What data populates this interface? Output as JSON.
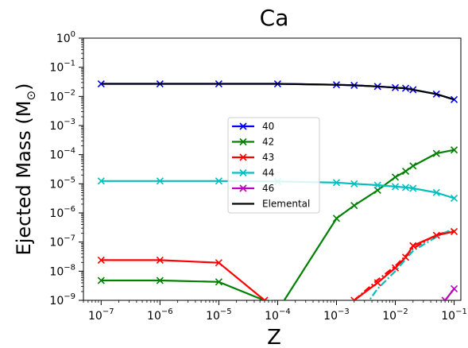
{
  "chart_data": {
    "type": "line",
    "title": "Ca",
    "xlabel": "Z",
    "ylabel": "Ejected Mass (M",
    "ylabel_symbol": "⊙",
    "ylabel_close": ")",
    "xscale": "log",
    "yscale": "log",
    "xlim": [
      5e-08,
      0.13
    ],
    "ylim": [
      1e-09,
      1
    ],
    "x_ticks": [
      {
        "value": 1e-07,
        "base": "10",
        "exp": "−7"
      },
      {
        "value": 1e-06,
        "base": "10",
        "exp": "−6"
      },
      {
        "value": 1e-05,
        "base": "10",
        "exp": "−5"
      },
      {
        "value": 0.0001,
        "base": "10",
        "exp": "−4"
      },
      {
        "value": 0.001,
        "base": "10",
        "exp": "−3"
      },
      {
        "value": 0.01,
        "base": "10",
        "exp": "−2"
      },
      {
        "value": 0.1,
        "base": "10",
        "exp": "−1"
      }
    ],
    "y_ticks": [
      {
        "value": 1.0,
        "base": "10",
        "exp": "0"
      },
      {
        "value": 0.1,
        "base": "10",
        "exp": "−1"
      },
      {
        "value": 0.01,
        "base": "10",
        "exp": "−2"
      },
      {
        "value": 0.001,
        "base": "10",
        "exp": "−3"
      },
      {
        "value": 0.0001,
        "base": "10",
        "exp": "−4"
      },
      {
        "value": 1e-05,
        "base": "10",
        "exp": "−5"
      },
      {
        "value": 1e-06,
        "base": "10",
        "exp": "−6"
      },
      {
        "value": 1e-07,
        "base": "10",
        "exp": "−7"
      },
      {
        "value": 1e-08,
        "base": "10",
        "exp": "−8"
      },
      {
        "value": 1e-09,
        "base": "10",
        "exp": "−9"
      }
    ],
    "legend_position": "center",
    "series": [
      {
        "name": "40",
        "color": "#0000ff",
        "marker": "x",
        "style": "solid",
        "x": [
          1e-07,
          1e-06,
          1e-05,
          0.0001,
          0.001,
          0.002,
          0.005,
          0.01,
          0.015,
          0.02,
          0.05,
          0.1
        ],
        "y": [
          0.027,
          0.027,
          0.027,
          0.027,
          0.025,
          0.024,
          0.022,
          0.02,
          0.019,
          0.017,
          0.012,
          0.0078
        ]
      },
      {
        "name": "42",
        "color": "#008000",
        "marker": "x",
        "style": "solid",
        "x": [
          1e-07,
          1e-06,
          1e-05,
          0.00011,
          0.001,
          0.002,
          0.005,
          0.01,
          0.015,
          0.02,
          0.05,
          0.1
        ],
        "y": [
          4.8e-09,
          4.8e-09,
          4.3e-09,
          6e-10,
          6.5e-07,
          1.8e-06,
          6e-06,
          1.7e-05,
          2.7e-05,
          4.1e-05,
          0.00011,
          0.000145
        ]
      },
      {
        "name": "43",
        "color": "#ff0000",
        "marker": "x",
        "style": "solid",
        "x": [
          1e-07,
          1e-06,
          1e-05,
          6e-05,
          0.001,
          0.002,
          0.005,
          0.01,
          0.015,
          0.02,
          0.05,
          0.1
        ],
        "y": [
          2.4e-08,
          2.4e-08,
          1.95e-08,
          1e-09,
          6e-10,
          1e-09,
          4e-09,
          1.3e-08,
          3e-08,
          7.5e-08,
          1.7e-07,
          2.3e-07
        ]
      },
      {
        "name": "44",
        "color": "#00bfbf",
        "marker": "x",
        "style": "solid",
        "x": [
          1e-07,
          1e-06,
          1e-05,
          0.0001,
          0.001,
          0.002,
          0.005,
          0.01,
          0.015,
          0.02,
          0.05,
          0.1
        ],
        "y": [
          1.25e-05,
          1.25e-05,
          1.25e-05,
          1.2e-05,
          1.1e-05,
          1e-05,
          9e-06,
          8e-06,
          7.5e-06,
          7e-06,
          5e-06,
          3.2e-06
        ]
      },
      {
        "name": "46",
        "color": "#bf00bf",
        "marker": "x",
        "style": "solid",
        "x": [
          0.07,
          0.1
        ],
        "y": [
          1e-09,
          2.5e-09
        ]
      },
      {
        "name": "Elemental",
        "color": "#000000",
        "marker": "none",
        "style": "solid",
        "x": [
          1e-07,
          1e-06,
          1e-05,
          0.0001,
          0.001,
          0.002,
          0.005,
          0.01,
          0.015,
          0.02,
          0.05,
          0.1
        ],
        "y": [
          0.027,
          0.027,
          0.027,
          0.027,
          0.025,
          0.024,
          0.022,
          0.02,
          0.019,
          0.017,
          0.012,
          0.0078
        ]
      }
    ],
    "unlabeled_lines": [
      {
        "color": "#ff0000",
        "style": "dashdot",
        "x": [
          0.002,
          0.005,
          0.01,
          0.02,
          0.05,
          0.1
        ],
        "y": [
          1e-09,
          5e-09,
          1.5e-08,
          6e-08,
          1.8e-07,
          2.5e-07
        ]
      },
      {
        "color": "#00bfbf",
        "style": "dashdot",
        "x": [
          0.003,
          0.005,
          0.01,
          0.02,
          0.05,
          0.1
        ],
        "y": [
          6e-10,
          2.5e-09,
          1e-08,
          5e-08,
          1.5e-07,
          3e-07
        ]
      }
    ]
  }
}
